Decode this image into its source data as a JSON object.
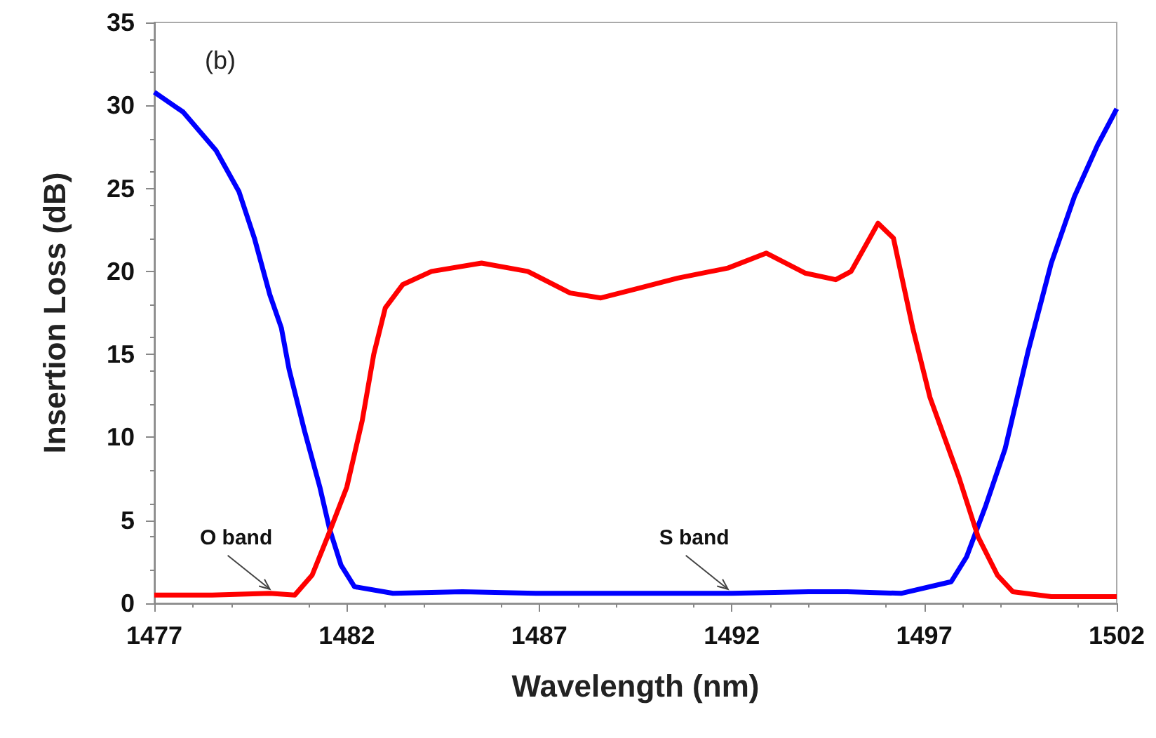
{
  "chart_data": {
    "type": "line",
    "xlabel": "Wavelength (nm)",
    "ylabel": "Insertion Loss (dB)",
    "xlim": [
      1477,
      1502
    ],
    "xticks": [
      1477,
      1482,
      1487,
      1492,
      1497,
      1502
    ],
    "ylim": [
      0,
      35
    ],
    "yticks": [
      0,
      5,
      10,
      15,
      20,
      25,
      30,
      35
    ],
    "grid": false,
    "marker": "none",
    "line_style": "solid",
    "annotations": [
      "(b)",
      {
        "text": "O band",
        "x": 1480.0,
        "y": 0.6
      },
      {
        "text": "S band",
        "x": 1491.9,
        "y": 0.6
      }
    ],
    "series": [
      {
        "color": "#0000ff",
        "x": [
          1477,
          1477.75,
          1478.6,
          1479.2,
          1479.6,
          1480.0,
          1480.3,
          1480.5,
          1480.9,
          1481.3,
          1481.55,
          1481.85,
          1482.2,
          1483.2,
          1485,
          1487,
          1489.6,
          1492,
          1494,
          1495,
          1496.4,
          1497.7,
          1498.1,
          1498.6,
          1499.1,
          1499.7,
          1500.3,
          1500.9,
          1501.5,
          1502
        ],
        "values": [
          30.8,
          29.6,
          27.3,
          24.8,
          22.0,
          18.6,
          16.6,
          14.1,
          10.4,
          7.0,
          4.5,
          2.3,
          1.0,
          0.6,
          0.7,
          0.6,
          0.6,
          0.6,
          0.7,
          0.7,
          0.6,
          1.3,
          2.8,
          5.9,
          9.3,
          15.2,
          20.5,
          24.5,
          27.6,
          29.8
        ]
      },
      {
        "color": "#ff0000",
        "x": [
          1477,
          1478.5,
          1480.0,
          1480.65,
          1481.1,
          1481.5,
          1482.0,
          1482.4,
          1482.7,
          1483.0,
          1483.45,
          1484.2,
          1485.5,
          1486.7,
          1487.8,
          1488.6,
          1489.6,
          1490.6,
          1491.9,
          1492.9,
          1493.9,
          1494.7,
          1495.1,
          1495.8,
          1496.2,
          1496.7,
          1497.15,
          1497.9,
          1498.4,
          1498.9,
          1499.3,
          1500.3,
          1502
        ],
        "values": [
          0.5,
          0.5,
          0.6,
          0.5,
          1.7,
          4.0,
          7.0,
          11.0,
          15.0,
          17.8,
          19.2,
          20.0,
          20.5,
          20.0,
          18.7,
          18.4,
          19.0,
          19.6,
          20.2,
          21.1,
          19.9,
          19.5,
          20.0,
          22.9,
          22.0,
          16.6,
          12.4,
          7.6,
          4.0,
          1.7,
          0.7,
          0.4,
          0.4
        ]
      }
    ]
  }
}
